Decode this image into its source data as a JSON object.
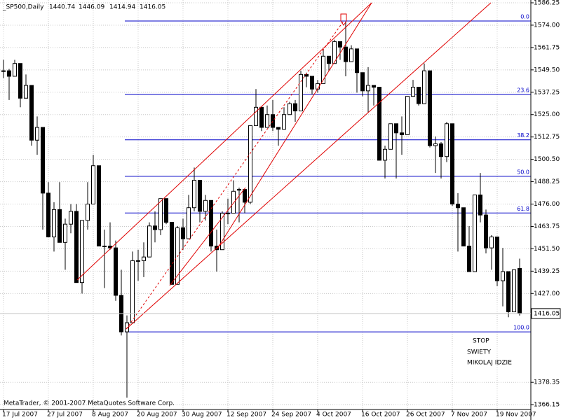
{
  "chart_data": {
    "type": "candlestick",
    "title": "_SP500,Daily",
    "footer": "MetaTrader, © 2001-2007 MetaQuotes Software Corp.",
    "annotation": [
      "STOP",
      "SWIETY",
      "MIKOLAJ IDZIE"
    ],
    "categories": [
      "17 Jul 2007",
      null,
      null,
      null,
      null,
      null,
      null,
      null,
      "27 Jul 2007",
      null,
      null,
      null,
      null,
      null,
      null,
      null,
      "8 Aug 2007",
      null,
      null,
      null,
      null,
      null,
      null,
      null,
      "20 Aug 2007",
      null,
      null,
      null,
      null,
      null,
      null,
      null,
      "30 Aug 2007",
      null,
      null,
      null,
      null,
      null,
      null,
      null,
      "12 Sep 2007",
      null,
      null,
      null,
      null,
      null,
      null,
      null,
      "24 Sep 2007",
      null,
      null,
      null,
      null,
      null,
      null,
      null,
      "4 Oct 2007",
      null,
      null,
      null,
      null,
      null,
      null,
      null,
      "16 Oct 2007",
      null,
      null,
      null,
      null,
      null,
      null,
      null,
      "26 Oct 2007",
      null,
      null,
      null,
      null,
      null,
      null,
      null,
      "7 Nov 2007",
      null,
      null,
      null,
      null,
      null,
      null,
      null,
      "19 Nov 2007",
      null,
      null,
      null,
      null
    ],
    "open": [
      1549,
      1549,
      1546,
      1553,
      1534,
      1541,
      1511,
      1518,
      1482,
      1458,
      1473,
      1455,
      1465,
      1472,
      1433,
      1467,
      1476,
      1497,
      1453,
      1453,
      1452,
      1426,
      1406,
      1411,
      1445,
      1445,
      1447,
      1464,
      1462,
      1479,
      1466,
      1432,
      1463,
      1457,
      1474,
      1489,
      1472,
      1478,
      1453,
      1451,
      1471,
      1471,
      1484,
      1484,
      1477,
      1519,
      1529,
      1518,
      1525,
      1518,
      1517,
      1525,
      1531,
      1527,
      1547,
      1546,
      1539,
      1542,
      1557,
      1553,
      1565,
      1562,
      1554,
      1561,
      1548,
      1538,
      1541,
      1540,
      1500,
      1506,
      1520,
      1515,
      1514,
      1535,
      1540,
      1531,
      1549,
      1508,
      1509,
      1502,
      1520,
      1476,
      1474,
      1453,
      1439,
      1481,
      1470,
      1452,
      1458,
      1434,
      1439,
      1417,
      1440.74
    ],
    "high": [
      1555,
      1550,
      1555,
      1553,
      1547,
      1541,
      1524,
      1518,
      1488,
      1477,
      1488,
      1468,
      1476,
      1476,
      1467,
      1488,
      1503,
      1497,
      1462,
      1466,
      1456,
      1440,
      1415,
      1450,
      1451,
      1455,
      1466,
      1472,
      1479,
      1479,
      1466,
      1464,
      1468,
      1481,
      1496,
      1489,
      1481,
      1478,
      1462,
      1472,
      1479,
      1489,
      1485,
      1484,
      1519,
      1539,
      1529,
      1530,
      1533,
      1518,
      1529,
      1532,
      1533,
      1549,
      1548,
      1546,
      1544,
      1561,
      1557,
      1566,
      1565,
      1576,
      1563,
      1561,
      1548,
      1551,
      1541,
      1540,
      1508,
      1520,
      1520,
      1524,
      1535,
      1544,
      1540,
      1553,
      1549,
      1513,
      1510,
      1521,
      1520,
      1482,
      1474,
      1464,
      1481,
      1493,
      1473,
      1459,
      1458,
      1452,
      1439,
      1440,
      1446.09
    ],
    "low": [
      1545,
      1533,
      1546,
      1529,
      1534,
      1508,
      1503,
      1462,
      1458,
      1450,
      1455,
      1440,
      1460,
      1433,
      1427,
      1462,
      1476,
      1453,
      1430,
      1451,
      1423,
      1404,
      1370,
      1411,
      1434,
      1436,
      1447,
      1455,
      1459,
      1465,
      1432,
      1432,
      1451,
      1457,
      1472,
      1466,
      1467,
      1450,
      1439,
      1451,
      1465,
      1471,
      1466,
      1471,
      1476,
      1519,
      1516,
      1518,
      1516,
      1508,
      1517,
      1525,
      1521,
      1527,
      1540,
      1536,
      1537,
      1542,
      1549,
      1553,
      1555,
      1546,
      1554,
      1537,
      1535,
      1526,
      1530,
      1500,
      1490,
      1506,
      1490,
      1503,
      1514,
      1535,
      1530,
      1531,
      1507,
      1493,
      1490,
      1499,
      1475,
      1450,
      1453,
      1439,
      1439,
      1466,
      1449,
      1440,
      1431,
      1420,
      1414,
      1417,
      1414.94
    ],
    "close": [
      1549,
      1546,
      1553,
      1534,
      1541,
      1511,
      1518,
      1482,
      1458,
      1473,
      1455,
      1465,
      1472,
      1433,
      1467,
      1476,
      1497,
      1453,
      1453,
      1452,
      1426,
      1406,
      1411,
      1445,
      1445,
      1447,
      1464,
      1462,
      1479,
      1466,
      1432,
      1463,
      1457,
      1474,
      1489,
      1472,
      1478,
      1453,
      1451,
      1471,
      1471,
      1483,
      1484,
      1477,
      1519,
      1529,
      1518,
      1525,
      1518,
      1517,
      1525,
      1531,
      1527,
      1547,
      1546,
      1539,
      1542,
      1557,
      1553,
      1565,
      1562,
      1554,
      1561,
      1548,
      1538,
      1541,
      1540,
      1500,
      1506,
      1520,
      1515,
      1514,
      1535,
      1540,
      1531,
      1549,
      1508,
      1509,
      1502,
      1520,
      1476,
      1474,
      1453,
      1439,
      1481,
      1470,
      1452,
      1458,
      1434,
      1439,
      1417,
      1440,
      1416.05
    ],
    "ylim": [
      1363.47,
      1587.78
    ],
    "yticks": [
      1586.25,
      {
        "value": 1574.0,
        "label": "1574.00"
      },
      1561.75,
      {
        "value": 1549.5,
        "label": "1549.50"
      },
      1537.25,
      {
        "value": 1525.0,
        "label": "1525.00"
      },
      1512.75,
      {
        "value": 1500.5,
        "label": "1500.50"
      },
      1488.25,
      {
        "value": 1476.0,
        "label": "1476.00"
      },
      1463.75,
      {
        "value": 1451.5,
        "label": "1451.50"
      },
      1439.25,
      {
        "value": 1427.0,
        "label": "1427.00"
      },
      1378.35,
      1366.15
    ],
    "grid": true,
    "fibo": [
      {
        "label": "0.0",
        "value": 1576.3
      },
      {
        "label": "23.6",
        "value": 1536.1
      },
      {
        "label": "38.2",
        "value": 1511.2
      },
      {
        "label": "50.0",
        "value": 1491.2
      },
      {
        "label": "61.8",
        "value": 1471.1
      },
      {
        "label": "100.0",
        "value": 1406.0
      }
    ]
  }
}
